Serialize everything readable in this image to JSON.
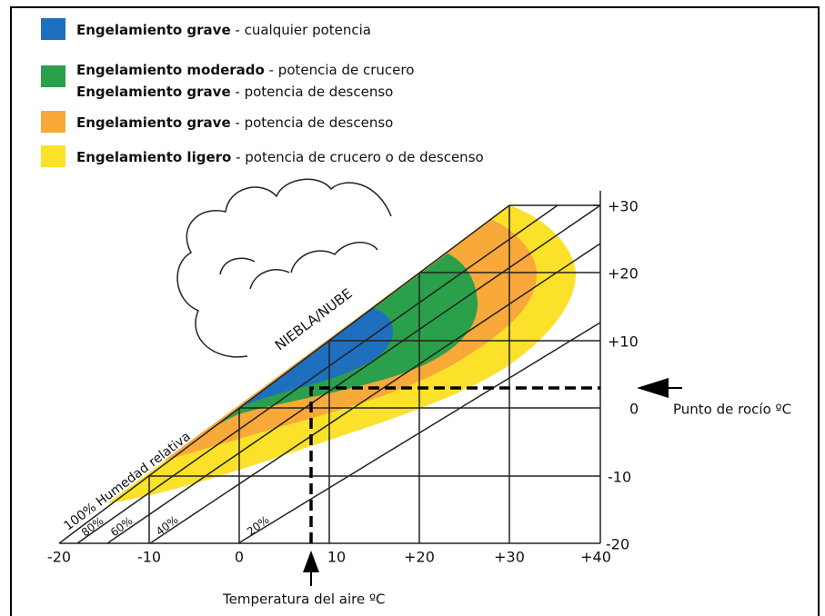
{
  "legend": [
    {
      "color": "#1f6fbf",
      "lines": [
        {
          "bold": "Engelamiento grave",
          "text": "- cualquier potencia"
        }
      ]
    },
    {
      "color": "#2aa04a",
      "lines": [
        {
          "bold": "Engelamiento moderado",
          "text": "- potencia de crucero"
        },
        {
          "bold": "Engelamiento grave",
          "text": "- potencia de descenso"
        }
      ]
    },
    {
      "color": "#f9a83a",
      "lines": [
        {
          "bold": "Engelamiento grave",
          "text": "- potencia de descenso"
        }
      ]
    },
    {
      "color": "#fbe12a",
      "lines": [
        {
          "bold": "Engelamiento ligero",
          "text": "- potencia de crucero o de descenso"
        }
      ]
    }
  ],
  "diagram": {
    "cloud_label": "NIEBLA/NUBE",
    "humidity_label": "100% Humedad relativa",
    "humidity_lines": [
      "80%",
      "60%",
      "40%",
      "20%"
    ],
    "x_axis_title": "Temperatura del aire ºC",
    "y_axis_title": "Punto de rocío ºC",
    "x_ticks": [
      "-20",
      "-10",
      "0",
      "10",
      "+20",
      "+30",
      "+40"
    ],
    "y_ticks": [
      "+30",
      "+20",
      "+10",
      "0",
      "-10",
      "-20"
    ]
  }
}
